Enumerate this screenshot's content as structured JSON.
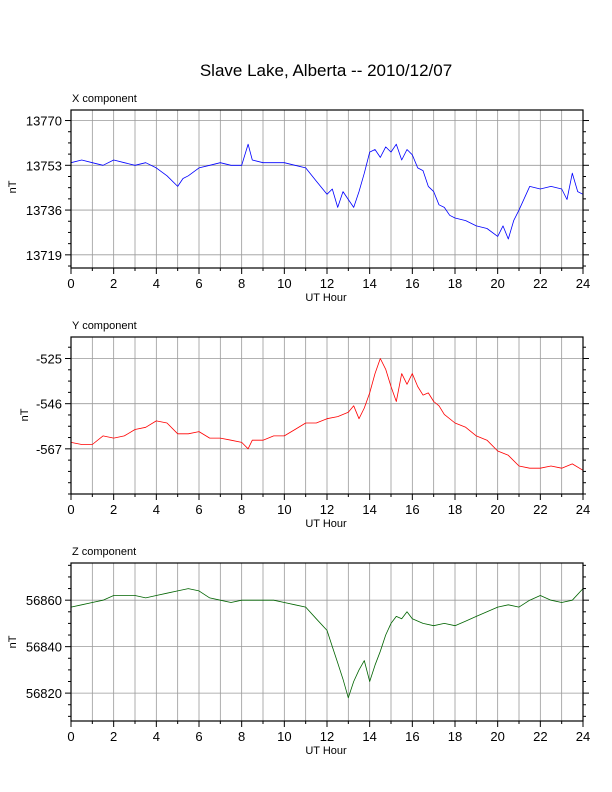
{
  "page": {
    "title": "Slave Lake, Alberta -- 2010/12/07"
  },
  "chart_data": [
    {
      "type": "line",
      "title": "X component",
      "xlabel": "UT Hour",
      "ylabel": "nT",
      "xlim": [
        0,
        24
      ],
      "ylim": [
        13714,
        13774
      ],
      "xticks": [
        0,
        2,
        4,
        6,
        8,
        10,
        12,
        14,
        16,
        18,
        20,
        22,
        24
      ],
      "yticks": [
        13719,
        13736,
        13753,
        13770
      ],
      "grid": true,
      "color": "#0000ff",
      "x": [
        0,
        0.5,
        1,
        1.5,
        2,
        2.5,
        3,
        3.5,
        4,
        4.5,
        5,
        5.25,
        5.5,
        6,
        6.5,
        7,
        7.5,
        8,
        8.3,
        8.5,
        9,
        9.5,
        10,
        10.5,
        11,
        11.5,
        12,
        12.25,
        12.5,
        12.75,
        13,
        13.25,
        13.5,
        13.75,
        14,
        14.25,
        14.5,
        14.75,
        15,
        15.25,
        15.5,
        15.75,
        16,
        16.25,
        16.5,
        16.75,
        17,
        17.25,
        17.5,
        17.75,
        18,
        18.5,
        19,
        19.5,
        20,
        20.25,
        20.5,
        20.75,
        21,
        21.5,
        22,
        22.5,
        23,
        23.25,
        23.5,
        23.75,
        24
      ],
      "values": [
        13754,
        13755,
        13754,
        13753,
        13755,
        13754,
        13753,
        13754,
        13752,
        13749,
        13745,
        13748,
        13749,
        13752,
        13753,
        13754,
        13753,
        13753,
        13761,
        13755,
        13754,
        13754,
        13754,
        13753,
        13752,
        13747,
        13742,
        13744,
        13737,
        13743,
        13740,
        13737,
        13743,
        13750,
        13758,
        13759,
        13756,
        13760,
        13758,
        13761,
        13755,
        13759,
        13757,
        13752,
        13751,
        13745,
        13743,
        13738,
        13737,
        13734,
        13733,
        13732,
        13730,
        13729,
        13726,
        13730,
        13725,
        13732,
        13736,
        13745,
        13744,
        13745,
        13744,
        13740,
        13750,
        13743,
        13742
      ]
    },
    {
      "type": "line",
      "title": "Y component",
      "xlabel": "UT Hour",
      "ylabel": "nT",
      "xlim": [
        0,
        24
      ],
      "ylim": [
        -588,
        -515
      ],
      "xticks": [
        0,
        2,
        4,
        6,
        8,
        10,
        12,
        14,
        16,
        18,
        20,
        22,
        24
      ],
      "yticks": [
        -525,
        -546,
        -567
      ],
      "grid": true,
      "color": "#ff0000",
      "x": [
        0,
        0.5,
        1,
        1.5,
        2,
        2.5,
        3,
        3.5,
        4,
        4.5,
        5,
        5.5,
        6,
        6.5,
        7,
        7.5,
        8,
        8.3,
        8.5,
        9,
        9.5,
        10,
        10.5,
        11,
        11.5,
        12,
        12.5,
        13,
        13.25,
        13.5,
        13.75,
        14,
        14.25,
        14.5,
        14.75,
        15,
        15.25,
        15.5,
        15.75,
        16,
        16.25,
        16.5,
        16.75,
        17,
        17.25,
        17.5,
        18,
        18.5,
        19,
        19.5,
        20,
        20.5,
        21,
        21.5,
        22,
        22.5,
        23,
        23.5,
        24
      ],
      "values": [
        -564,
        -565,
        -565,
        -561,
        -562,
        -561,
        -558,
        -557,
        -554,
        -555,
        -560,
        -560,
        -559,
        -562,
        -562,
        -563,
        -564,
        -567,
        -563,
        -563,
        -561,
        -561,
        -558,
        -555,
        -555,
        -553,
        -552,
        -550,
        -547,
        -553,
        -548,
        -541,
        -532,
        -525,
        -530,
        -538,
        -545,
        -532,
        -537,
        -532,
        -538,
        -542,
        -541,
        -545,
        -547,
        -551,
        -555,
        -557,
        -561,
        -563,
        -568,
        -570,
        -575,
        -576,
        -576,
        -575,
        -576,
        -574,
        -577
      ]
    },
    {
      "type": "line",
      "title": "Z component",
      "xlabel": "UT Hour",
      "ylabel": "nT",
      "xlim": [
        0,
        24
      ],
      "ylim": [
        56808,
        56876
      ],
      "xticks": [
        0,
        2,
        4,
        6,
        8,
        10,
        12,
        14,
        16,
        18,
        20,
        22,
        24
      ],
      "yticks": [
        56820,
        56840,
        56860
      ],
      "grid": true,
      "color": "#006400",
      "x": [
        0,
        0.5,
        1,
        1.5,
        2,
        2.5,
        3,
        3.5,
        4,
        4.5,
        5,
        5.5,
        6,
        6.5,
        7,
        7.5,
        8,
        8.5,
        9,
        9.5,
        10,
        10.5,
        11,
        11.5,
        12,
        12.25,
        12.5,
        12.75,
        13,
        13.25,
        13.5,
        13.75,
        14,
        14.25,
        14.5,
        14.75,
        15,
        15.25,
        15.5,
        15.75,
        16,
        16.5,
        17,
        17.5,
        18,
        18.5,
        19,
        19.5,
        20,
        20.5,
        21,
        21.5,
        22,
        22.5,
        23,
        23.5,
        24
      ],
      "values": [
        56857,
        56858,
        56859,
        56860,
        56862,
        56862,
        56862,
        56861,
        56862,
        56863,
        56864,
        56865,
        56864,
        56861,
        56860,
        56859,
        56860,
        56860,
        56860,
        56860,
        56859,
        56858,
        56857,
        56852,
        56847,
        56840,
        56833,
        56826,
        56818,
        56825,
        56830,
        56834,
        56825,
        56832,
        56838,
        56845,
        56850,
        56853,
        56852,
        56855,
        56852,
        56850,
        56849,
        56850,
        56849,
        56851,
        56853,
        56855,
        56857,
        56858,
        56857,
        56860,
        56862,
        56860,
        56859,
        56860,
        56865
      ]
    }
  ]
}
